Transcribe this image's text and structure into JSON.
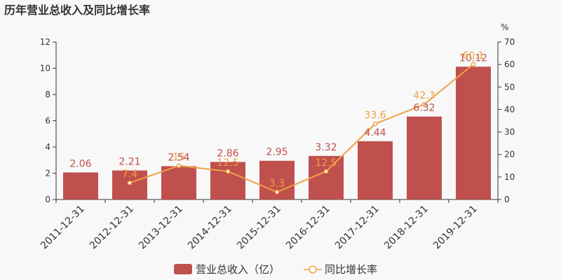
{
  "title": "历年营业总收入及同比增长率",
  "chart_data": {
    "type": "bar",
    "categories": [
      "2011-12-31",
      "2012-12-31",
      "2013-12-31",
      "2014-12-31",
      "2015-12-31",
      "2016-12-31",
      "2017-12-31",
      "2018-12-31",
      "2019-12-31"
    ],
    "series": [
      {
        "name": "营业总收入（亿）",
        "type": "bar",
        "axis": "left",
        "color": "#c0504d",
        "values": [
          2.06,
          2.21,
          2.54,
          2.86,
          2.95,
          3.32,
          4.44,
          6.32,
          10.12
        ],
        "labels": [
          "2.06",
          "2.21",
          "2.54",
          "2.86",
          "2.95",
          "3.32",
          "4.44",
          "6.32",
          "10.12"
        ]
      },
      {
        "name": "同比增长率",
        "type": "line",
        "axis": "right",
        "color": "#f0a044",
        "values": [
          null,
          7.4,
          15,
          12.5,
          3.3,
          12.5,
          33.6,
          42.3,
          60.1
        ],
        "labels": [
          "",
          "7.4",
          "15",
          "12.5",
          "3.3",
          "12.5",
          "33.6",
          "42.3",
          "60.1"
        ]
      }
    ],
    "left_axis": {
      "ylim": [
        0,
        12
      ],
      "ticks": [
        "0",
        "2",
        "4",
        "6",
        "8",
        "10",
        "12"
      ]
    },
    "right_axis": {
      "ylim": [
        0,
        70
      ],
      "ticks": [
        "0",
        "10",
        "20",
        "30",
        "40",
        "50",
        "60",
        "70"
      ],
      "unit": "%"
    },
    "grid": false,
    "legend_position": "bottom-center"
  }
}
